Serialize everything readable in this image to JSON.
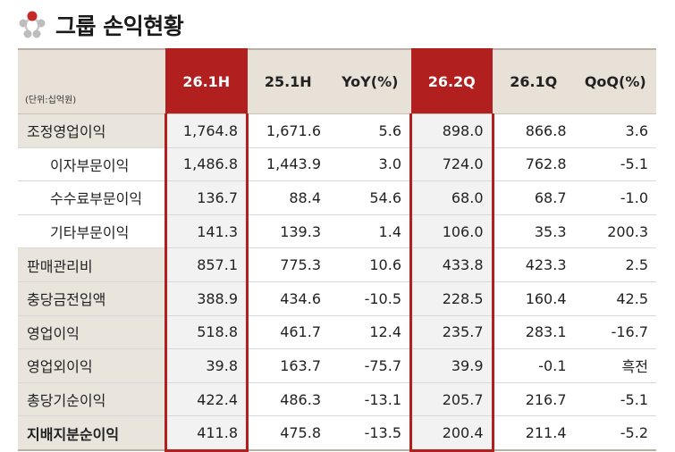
{
  "title": "그룹 손익현황",
  "unit": "(단위:십억원)",
  "colors": {
    "accent": "#b11f1f",
    "header_bg": "#e7e1d8",
    "highlight_cell_bg": "#f2f2f2"
  },
  "icon": "molecule-icon",
  "columns": [
    "26.1H",
    "25.1H",
    "YoY(%)",
    "26.2Q",
    "26.1Q",
    "QoQ(%)"
  ],
  "highlighted_columns": [
    "26.1H",
    "26.2Q"
  ],
  "rows": [
    {
      "label": "조정영업이익",
      "values": [
        "1,764.8",
        "1,671.6",
        "5.6",
        "898.0",
        "866.8",
        "3.6"
      ]
    },
    {
      "label": "이자부문이익",
      "values": [
        "1,486.8",
        "1,443.9",
        "3.0",
        "724.0",
        "762.8",
        "-5.1"
      ]
    },
    {
      "label": "수수료부문이익",
      "values": [
        "136.7",
        "88.4",
        "54.6",
        "68.0",
        "68.7",
        "-1.0"
      ]
    },
    {
      "label": "기타부문이익",
      "values": [
        "141.3",
        "139.3",
        "1.4",
        "106.0",
        "35.3",
        "200.3"
      ]
    },
    {
      "label": "판매관리비",
      "values": [
        "857.1",
        "775.3",
        "10.6",
        "433.8",
        "423.3",
        "2.5"
      ]
    },
    {
      "label": "충당금전입액",
      "values": [
        "388.9",
        "434.6",
        "-10.5",
        "228.5",
        "160.4",
        "42.5"
      ]
    },
    {
      "label": "영업이익",
      "values": [
        "518.8",
        "461.7",
        "12.4",
        "235.7",
        "283.1",
        "-16.7"
      ]
    },
    {
      "label": "영업외이익",
      "values": [
        "39.8",
        "163.7",
        "-75.7",
        "39.9",
        "-0.1",
        "흑전"
      ]
    },
    {
      "label": "총당기순이익",
      "values": [
        "422.4",
        "486.3",
        "-13.1",
        "205.7",
        "216.7",
        "-5.1"
      ]
    },
    {
      "label": "지배지분순이익",
      "values": [
        "411.8",
        "475.8",
        "-13.5",
        "200.4",
        "211.4",
        "-5.2"
      ]
    }
  ]
}
